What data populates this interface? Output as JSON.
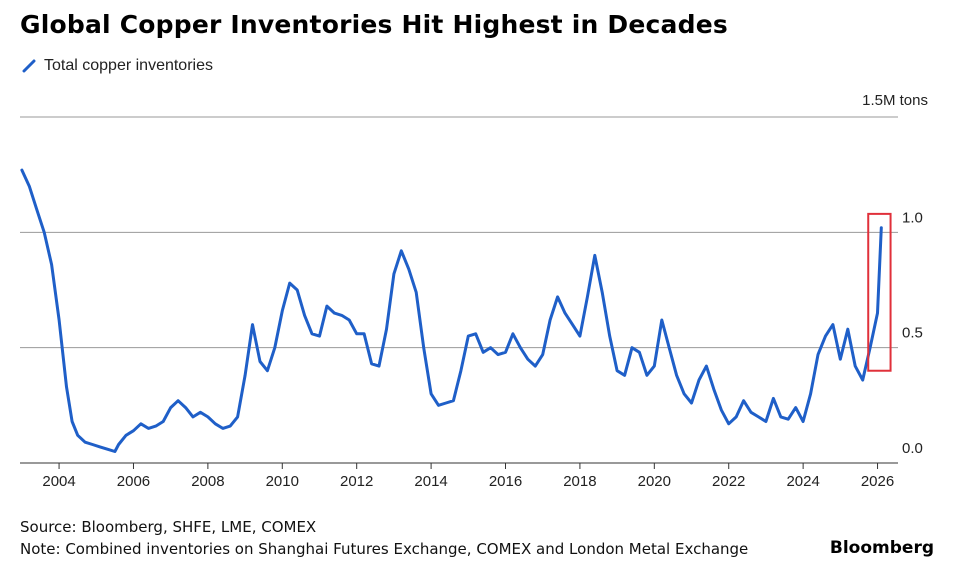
{
  "chart_data": {
    "type": "line",
    "title": "Global Copper Inventories Hit Highest in Decades",
    "ylabel": "",
    "unit_label": "1.5M tons",
    "ylim": [
      0,
      1.5
    ],
    "y_ticks": [
      0.0,
      0.5,
      1.0
    ],
    "y_tick_labels": [
      "0.0",
      "0.5",
      "1.0"
    ],
    "xlim": [
      2002.95,
      2026.55
    ],
    "x_ticks": [
      2004,
      2006,
      2008,
      2010,
      2012,
      2014,
      2016,
      2018,
      2020,
      2022,
      2024,
      2026
    ],
    "x_tick_labels": [
      "2004",
      "2006",
      "2008",
      "2010",
      "2012",
      "2014",
      "2016",
      "2018",
      "2020",
      "2022",
      "2024",
      "2026"
    ],
    "grid": "horizontal",
    "legend_placement": "top-left",
    "series": [
      {
        "name": "Total copper inventories",
        "color": "#1f5fc8",
        "x": [
          2003.0,
          2003.2,
          2003.4,
          2003.6,
          2003.8,
          2004.0,
          2004.2,
          2004.35,
          2004.5,
          2004.7,
          2004.9,
          2005.1,
          2005.3,
          2005.5,
          2005.6,
          2005.8,
          2006.0,
          2006.2,
          2006.4,
          2006.6,
          2006.8,
          2007.0,
          2007.2,
          2007.4,
          2007.6,
          2007.8,
          2008.0,
          2008.2,
          2008.4,
          2008.6,
          2008.8,
          2009.0,
          2009.2,
          2009.4,
          2009.6,
          2009.8,
          2010.0,
          2010.2,
          2010.4,
          2010.6,
          2010.8,
          2011.0,
          2011.2,
          2011.4,
          2011.6,
          2011.8,
          2012.0,
          2012.2,
          2012.4,
          2012.6,
          2012.8,
          2013.0,
          2013.2,
          2013.4,
          2013.6,
          2013.8,
          2014.0,
          2014.2,
          2014.4,
          2014.6,
          2014.8,
          2015.0,
          2015.2,
          2015.4,
          2015.6,
          2015.8,
          2016.0,
          2016.2,
          2016.4,
          2016.6,
          2016.8,
          2017.0,
          2017.2,
          2017.4,
          2017.6,
          2017.8,
          2018.0,
          2018.2,
          2018.4,
          2018.6,
          2018.8,
          2019.0,
          2019.2,
          2019.4,
          2019.6,
          2019.8,
          2020.0,
          2020.2,
          2020.4,
          2020.6,
          2020.8,
          2021.0,
          2021.2,
          2021.4,
          2021.6,
          2021.8,
          2022.0,
          2022.2,
          2022.4,
          2022.6,
          2022.8,
          2023.0,
          2023.2,
          2023.4,
          2023.6,
          2023.8,
          2024.0,
          2024.2,
          2024.4,
          2024.6,
          2024.8,
          2025.0,
          2025.2,
          2025.4,
          2025.6,
          2025.8,
          2026.0,
          2026.1
        ],
        "values": [
          1.27,
          1.2,
          1.1,
          1.0,
          0.86,
          0.62,
          0.33,
          0.18,
          0.12,
          0.09,
          0.08,
          0.07,
          0.06,
          0.05,
          0.08,
          0.12,
          0.14,
          0.17,
          0.15,
          0.16,
          0.18,
          0.24,
          0.27,
          0.24,
          0.2,
          0.22,
          0.2,
          0.17,
          0.15,
          0.16,
          0.2,
          0.38,
          0.6,
          0.44,
          0.4,
          0.5,
          0.66,
          0.78,
          0.75,
          0.64,
          0.56,
          0.55,
          0.68,
          0.65,
          0.64,
          0.62,
          0.56,
          0.56,
          0.43,
          0.42,
          0.58,
          0.82,
          0.92,
          0.84,
          0.74,
          0.5,
          0.3,
          0.25,
          0.26,
          0.27,
          0.4,
          0.55,
          0.56,
          0.48,
          0.5,
          0.47,
          0.48,
          0.56,
          0.5,
          0.45,
          0.42,
          0.47,
          0.62,
          0.72,
          0.65,
          0.6,
          0.55,
          0.72,
          0.9,
          0.74,
          0.55,
          0.4,
          0.38,
          0.5,
          0.48,
          0.38,
          0.42,
          0.62,
          0.5,
          0.38,
          0.3,
          0.26,
          0.36,
          0.42,
          0.32,
          0.23,
          0.17,
          0.2,
          0.27,
          0.22,
          0.2,
          0.18,
          0.28,
          0.2,
          0.19,
          0.24,
          0.18,
          0.3,
          0.47,
          0.55,
          0.6,
          0.45,
          0.58,
          0.42,
          0.36,
          0.5,
          0.65,
          1.02
        ]
      }
    ],
    "highlight": {
      "x_range": [
        2025.75,
        2026.35
      ],
      "y_range": [
        0.4,
        1.08
      ],
      "color": "#e0303a"
    }
  },
  "source": "Source: Bloomberg, SHFE, LME, COMEX",
  "note": "Note: Combined inventories on Shanghai Futures Exchange, COMEX and London Metal Exchange",
  "brand": "Bloomberg"
}
